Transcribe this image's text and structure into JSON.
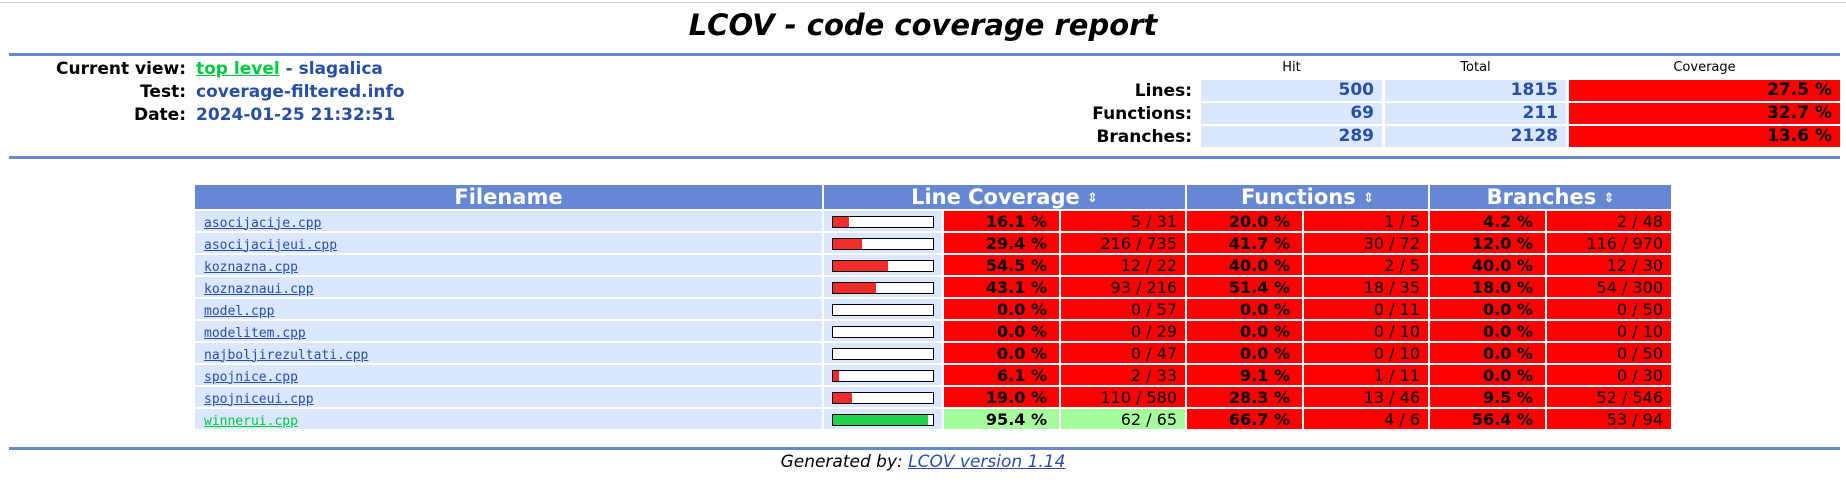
{
  "title": "LCOV - code coverage report",
  "header": {
    "current_view_label": "Current view:",
    "current_view_link": "top level",
    "current_view_sep": " - ",
    "current_view_name": "slagalica",
    "test_label": "Test:",
    "test_value": "coverage-filtered.info",
    "date_label": "Date:",
    "date_value": "2024-01-25 21:32:51"
  },
  "summary": {
    "col_hit": "Hit",
    "col_total": "Total",
    "col_coverage": "Coverage",
    "rows": [
      {
        "label": "Lines:",
        "hit": "500",
        "total": "1815",
        "coverage": "27.5 %"
      },
      {
        "label": "Functions:",
        "hit": "69",
        "total": "211",
        "coverage": "32.7 %"
      },
      {
        "label": "Branches:",
        "hit": "289",
        "total": "2128",
        "coverage": "13.6 %"
      }
    ]
  },
  "table": {
    "headers": {
      "filename": "Filename",
      "line_coverage": "Line Coverage",
      "functions": "Functions",
      "branches": "Branches"
    },
    "sort_icon": "⇕",
    "rows": [
      {
        "file": "asocijacije.cpp",
        "bar": 0.161,
        "line_pct": "16.1 %",
        "line_cnt": "5 / 31",
        "func_pct": "20.0 %",
        "func_cnt": "1 / 5",
        "br_pct": "4.2 %",
        "br_cnt": "2 / 48",
        "line_level": "lo"
      },
      {
        "file": "asocijacijeui.cpp",
        "bar": 0.294,
        "line_pct": "29.4 %",
        "line_cnt": "216 / 735",
        "func_pct": "41.7 %",
        "func_cnt": "30 / 72",
        "br_pct": "12.0 %",
        "br_cnt": "116 / 970",
        "line_level": "lo"
      },
      {
        "file": "koznazna.cpp",
        "bar": 0.545,
        "line_pct": "54.5 %",
        "line_cnt": "12 / 22",
        "func_pct": "40.0 %",
        "func_cnt": "2 / 5",
        "br_pct": "40.0 %",
        "br_cnt": "12 / 30",
        "line_level": "lo"
      },
      {
        "file": "koznaznaui.cpp",
        "bar": 0.431,
        "line_pct": "43.1 %",
        "line_cnt": "93 / 216",
        "func_pct": "51.4 %",
        "func_cnt": "18 / 35",
        "br_pct": "18.0 %",
        "br_cnt": "54 / 300",
        "line_level": "lo"
      },
      {
        "file": "model.cpp",
        "bar": 0.0,
        "line_pct": "0.0 %",
        "line_cnt": "0 / 57",
        "func_pct": "0.0 %",
        "func_cnt": "0 / 11",
        "br_pct": "0.0 %",
        "br_cnt": "0 / 50",
        "line_level": "lo"
      },
      {
        "file": "modelitem.cpp",
        "bar": 0.0,
        "line_pct": "0.0 %",
        "line_cnt": "0 / 29",
        "func_pct": "0.0 %",
        "func_cnt": "0 / 10",
        "br_pct": "0.0 %",
        "br_cnt": "0 / 10",
        "line_level": "lo"
      },
      {
        "file": "najboljirezultati.cpp",
        "bar": 0.0,
        "line_pct": "0.0 %",
        "line_cnt": "0 / 47",
        "func_pct": "0.0 %",
        "func_cnt": "0 / 10",
        "br_pct": "0.0 %",
        "br_cnt": "0 / 50",
        "line_level": "lo"
      },
      {
        "file": "spojnice.cpp",
        "bar": 0.061,
        "line_pct": "6.1 %",
        "line_cnt": "2 / 33",
        "func_pct": "9.1 %",
        "func_cnt": "1 / 11",
        "br_pct": "0.0 %",
        "br_cnt": "0 / 30",
        "line_level": "lo"
      },
      {
        "file": "spojniceui.cpp",
        "bar": 0.19,
        "line_pct": "19.0 %",
        "line_cnt": "110 / 580",
        "func_pct": "28.3 %",
        "func_cnt": "13 / 46",
        "br_pct": "9.5 %",
        "br_cnt": "52 / 546",
        "line_level": "lo"
      },
      {
        "file": "winnerui.cpp",
        "bar": 0.954,
        "line_pct": "95.4 %",
        "line_cnt": "62 / 65",
        "func_pct": "66.7 %",
        "func_cnt": "4 / 6",
        "br_pct": "56.4 %",
        "br_cnt": "53 / 94",
        "line_level": "hi"
      }
    ]
  },
  "colors": {
    "low": "#ff0000",
    "high": "#a7fc9d",
    "bar_low": "#f22b2b",
    "bar_high": "#1fd14f"
  },
  "footer": {
    "prefix": "Generated by: ",
    "link": "LCOV version 1.14"
  }
}
